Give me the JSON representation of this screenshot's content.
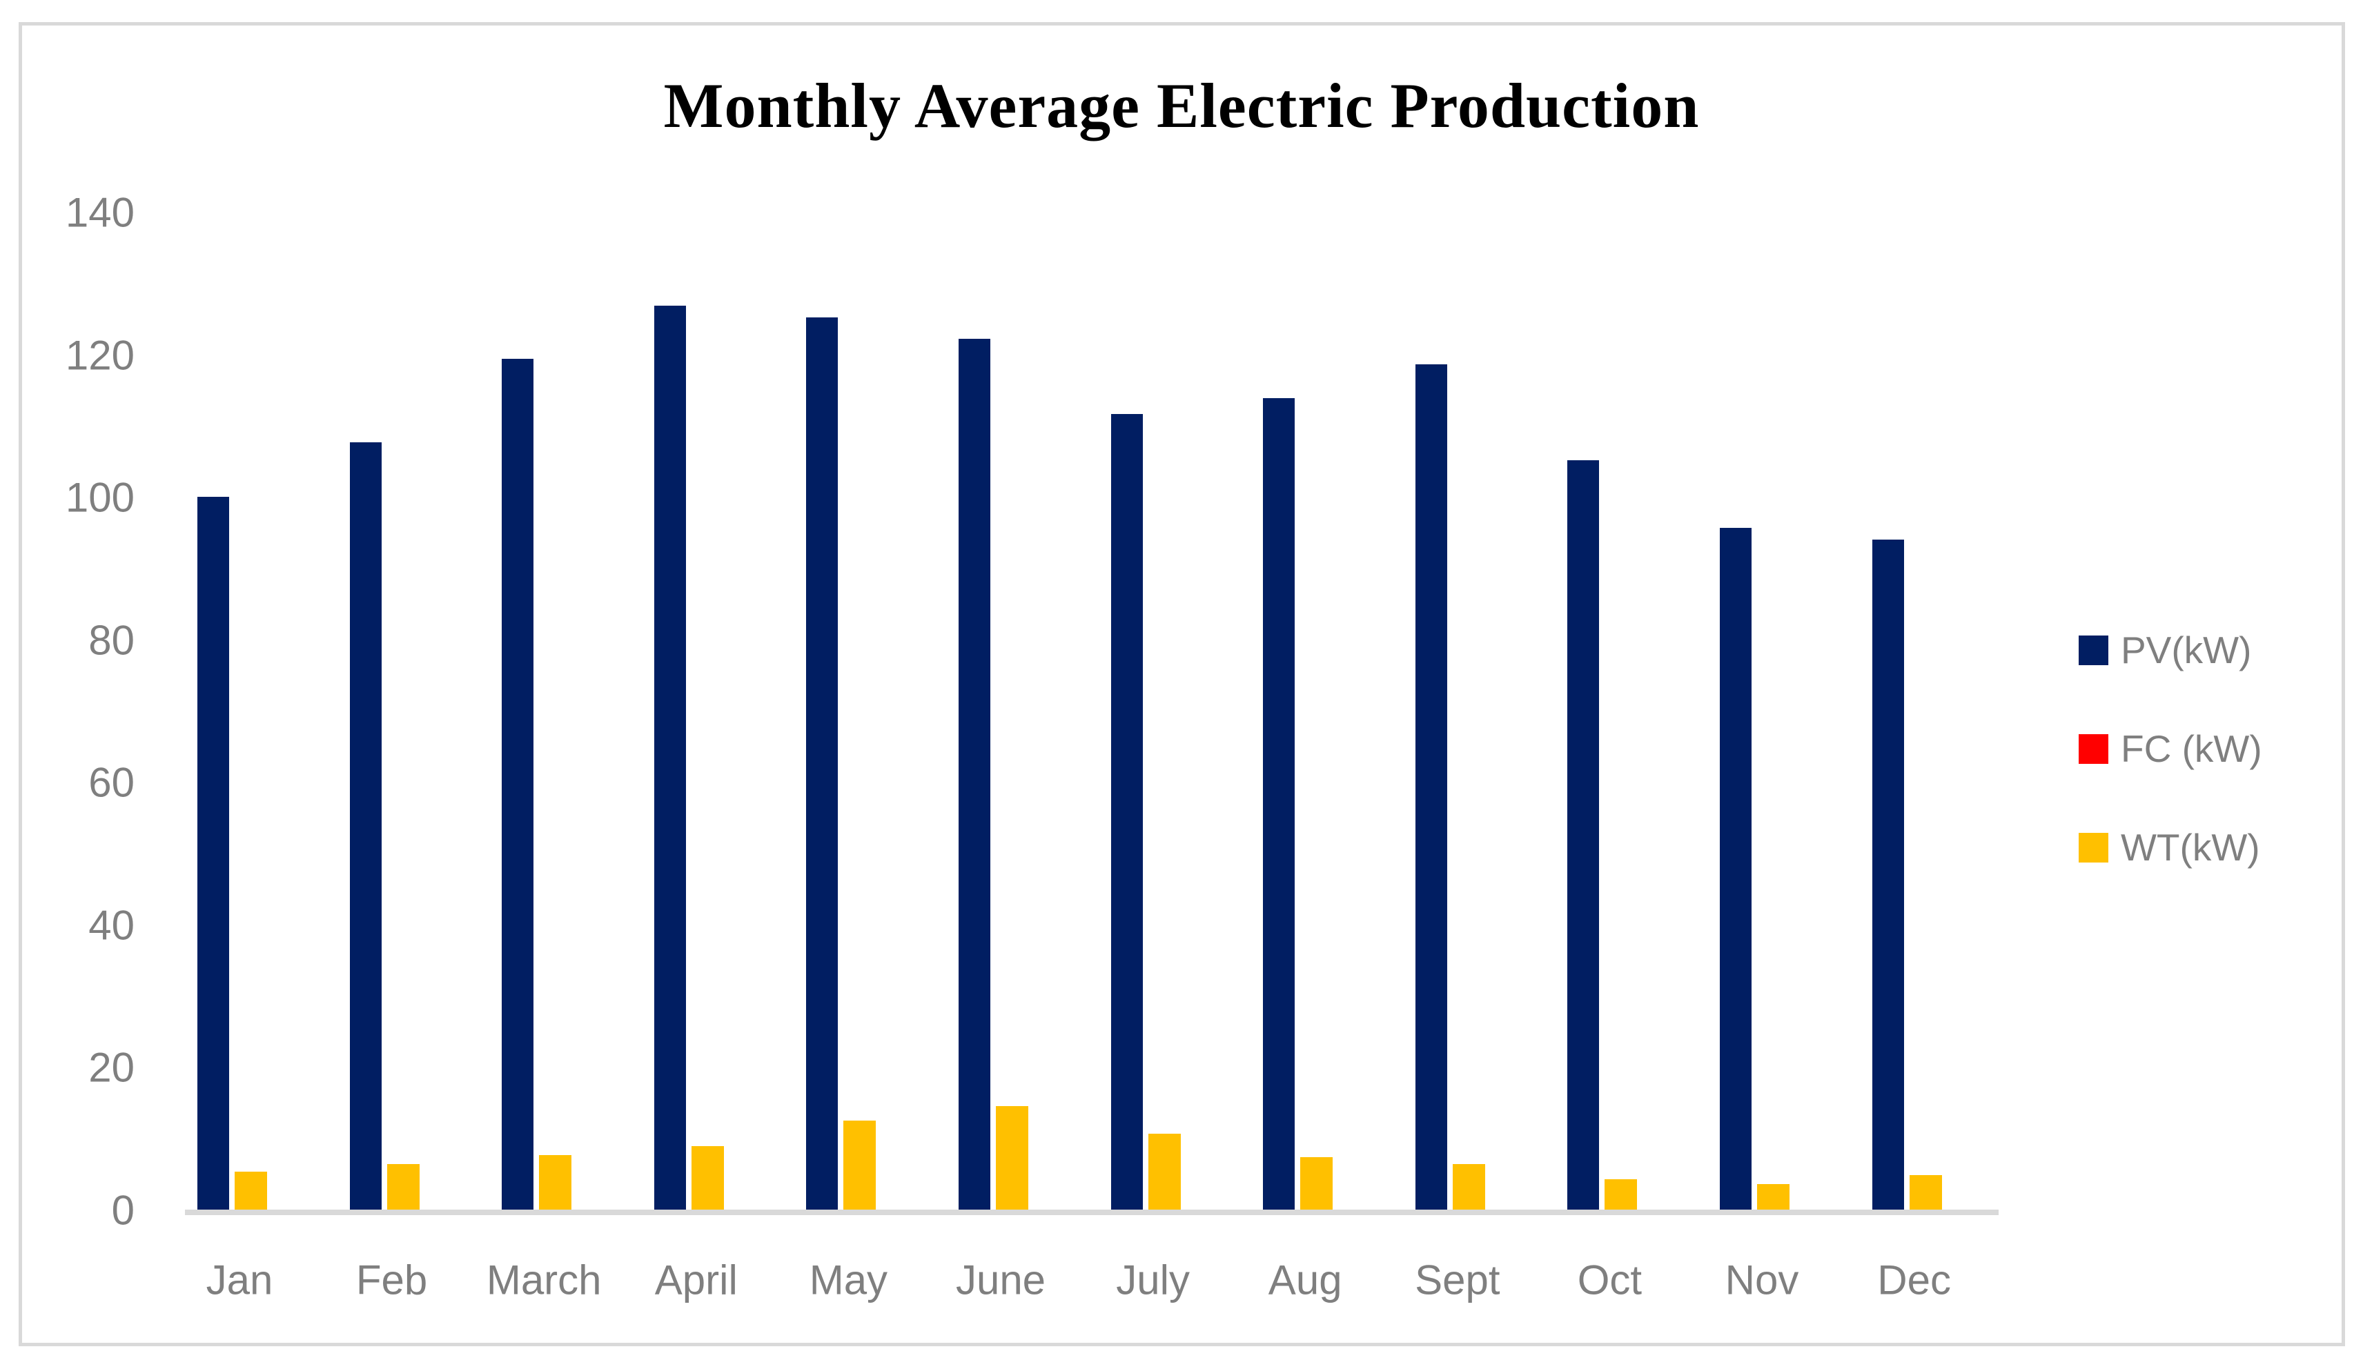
{
  "title": "Monthly Average Electric Production",
  "chart_data": {
    "type": "bar",
    "title": "Monthly Average Electric Production",
    "categories": [
      "Jan",
      "Feb",
      "March",
      "April",
      "May",
      "June",
      "July",
      "Aug",
      "Sept",
      "Oct",
      "Nov",
      "Dec"
    ],
    "series": [
      {
        "name": "PV(kW)",
        "color": "#011e62",
        "values": [
          100.4,
          108.0,
          119.8,
          127.2,
          125.6,
          122.6,
          112.0,
          114.2,
          119.0,
          105.5,
          96.0,
          94.4
        ]
      },
      {
        "name": "FC (kW)",
        "color": "#ff0000",
        "values": [
          0,
          0,
          0,
          0,
          0,
          0,
          0,
          0,
          0,
          0,
          0,
          0
        ]
      },
      {
        "name": "WT(kW)",
        "color": "#ffc000",
        "values": [
          5.7,
          6.8,
          8.0,
          9.3,
          12.9,
          14.9,
          11.0,
          7.7,
          6.8,
          4.6,
          4.0,
          5.2
        ]
      }
    ],
    "xlabel": "",
    "ylabel": "",
    "ylim": [
      0,
      140
    ],
    "yticks": [
      0,
      20,
      40,
      60,
      80,
      100,
      120,
      140
    ],
    "grid": false,
    "legend_position": "right"
  },
  "colors": {
    "axis_text": "#7f7f7f",
    "axis_line": "#d9d9d9",
    "frame_border": "#d9d9d9",
    "background": "#ffffff",
    "title_text": "#000000"
  }
}
